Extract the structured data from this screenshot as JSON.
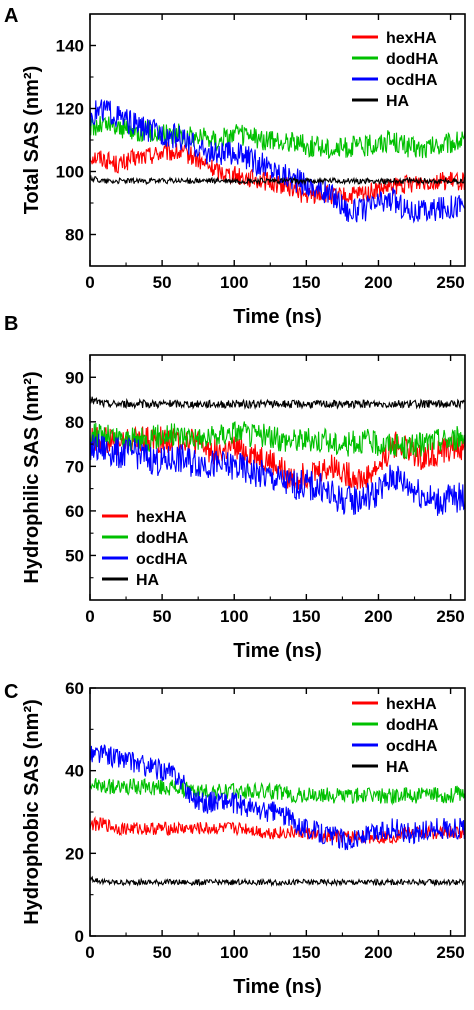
{
  "chart_data": [
    {
      "panel_label": "A",
      "type": "line",
      "xlabel": "Time (ns)",
      "ylabel": "Total SAS (nm²)",
      "xlim": [
        0,
        260
      ],
      "ylim": [
        70,
        150
      ],
      "xticks": [
        0,
        50,
        100,
        150,
        200,
        250
      ],
      "yticks": [
        80,
        100,
        120,
        140
      ],
      "legend_position": "top-right",
      "series": [
        {
          "name": "hexHA",
          "color": "#ff0000",
          "x": [
            0,
            10,
            20,
            30,
            40,
            50,
            60,
            70,
            80,
            90,
            100,
            110,
            120,
            130,
            140,
            150,
            160,
            170,
            180,
            190,
            200,
            210,
            220,
            230,
            240,
            250,
            260
          ],
          "values": [
            105,
            104,
            102,
            104,
            105,
            106,
            106,
            105,
            102,
            100,
            99,
            98,
            97,
            96,
            95,
            92,
            93,
            92,
            92,
            93,
            94,
            95,
            96,
            97,
            97,
            97,
            97
          ]
        },
        {
          "name": "dodHA",
          "color": "#00c000",
          "x": [
            0,
            10,
            20,
            30,
            40,
            50,
            60,
            70,
            80,
            90,
            100,
            110,
            120,
            130,
            140,
            150,
            160,
            170,
            180,
            190,
            200,
            210,
            220,
            230,
            240,
            250,
            260
          ],
          "values": [
            114,
            115,
            114,
            113,
            113,
            112,
            112,
            111,
            111,
            110,
            112,
            111,
            110,
            109,
            110,
            108,
            108,
            107,
            108,
            108,
            109,
            110,
            108,
            107,
            108,
            109,
            110
          ]
        },
        {
          "name": "ocdHA",
          "color": "#0000ff",
          "x": [
            0,
            10,
            20,
            30,
            40,
            50,
            60,
            70,
            80,
            90,
            100,
            110,
            120,
            130,
            140,
            150,
            160,
            170,
            180,
            190,
            200,
            210,
            220,
            230,
            240,
            250,
            260
          ],
          "values": [
            118,
            120,
            117,
            115,
            113,
            112,
            111,
            109,
            106,
            105,
            106,
            104,
            102,
            100,
            98,
            96,
            94,
            92,
            87,
            88,
            90,
            91,
            88,
            87,
            88,
            89,
            90
          ]
        },
        {
          "name": "HA",
          "color": "#000000",
          "x": [
            0,
            10,
            20,
            30,
            40,
            50,
            60,
            70,
            80,
            90,
            100,
            110,
            120,
            130,
            140,
            150,
            160,
            170,
            180,
            190,
            200,
            210,
            220,
            230,
            240,
            250,
            260
          ],
          "values": [
            98,
            97,
            97,
            97,
            97,
            97,
            97,
            97,
            97,
            97,
            97,
            97,
            97,
            97,
            97,
            97,
            97,
            97,
            97,
            97,
            97,
            97,
            97,
            97,
            97,
            97,
            97
          ]
        }
      ]
    },
    {
      "panel_label": "B",
      "type": "line",
      "xlabel": "Time (ns)",
      "ylabel": "Hydrophilic SAS (nm²)",
      "xlim": [
        0,
        260
      ],
      "ylim": [
        40,
        95
      ],
      "xticks": [
        0,
        50,
        100,
        150,
        200,
        250
      ],
      "yticks": [
        50,
        60,
        70,
        80,
        90
      ],
      "legend_position": "bottom-left",
      "series": [
        {
          "name": "hexHA",
          "color": "#ff0000",
          "x": [
            0,
            10,
            20,
            30,
            40,
            50,
            60,
            70,
            80,
            90,
            100,
            110,
            120,
            130,
            140,
            150,
            160,
            170,
            180,
            190,
            200,
            210,
            220,
            230,
            240,
            250,
            260
          ],
          "values": [
            76,
            76,
            75,
            76,
            76,
            76,
            76,
            76,
            74,
            73,
            74,
            73,
            72,
            70,
            67,
            68,
            69,
            70,
            68,
            67,
            70,
            75,
            74,
            72,
            73,
            74,
            74
          ]
        },
        {
          "name": "dodHA",
          "color": "#00c000",
          "x": [
            0,
            10,
            20,
            30,
            40,
            50,
            60,
            70,
            80,
            90,
            100,
            110,
            120,
            130,
            140,
            150,
            160,
            170,
            180,
            190,
            200,
            210,
            220,
            230,
            240,
            250,
            260
          ],
          "values": [
            77,
            77,
            76,
            76,
            76,
            77,
            77,
            77,
            76,
            77,
            78,
            77,
            77,
            76,
            76,
            76,
            76,
            75,
            75,
            76,
            75,
            75,
            74,
            75,
            76,
            76,
            77
          ]
        },
        {
          "name": "ocdHA",
          "color": "#0000ff",
          "x": [
            0,
            10,
            20,
            30,
            40,
            50,
            60,
            70,
            80,
            90,
            100,
            110,
            120,
            130,
            140,
            150,
            160,
            170,
            180,
            190,
            200,
            210,
            220,
            230,
            240,
            250,
            260
          ],
          "values": [
            74,
            74,
            73,
            73,
            72,
            71,
            72,
            71,
            71,
            70,
            70,
            69,
            68,
            67,
            66,
            66,
            65,
            63,
            62,
            63,
            64,
            68,
            66,
            64,
            62,
            63,
            63
          ]
        },
        {
          "name": "HA",
          "color": "#000000",
          "x": [
            0,
            10,
            20,
            30,
            40,
            50,
            60,
            70,
            80,
            90,
            100,
            110,
            120,
            130,
            140,
            150,
            160,
            170,
            180,
            190,
            200,
            210,
            220,
            230,
            240,
            250,
            260
          ],
          "values": [
            85,
            84,
            84,
            84,
            84,
            84,
            84,
            84,
            84,
            84,
            84,
            84,
            84,
            84,
            84,
            84,
            84,
            84,
            84,
            84,
            84,
            84,
            84,
            84,
            84,
            84,
            84
          ]
        }
      ]
    },
    {
      "panel_label": "C",
      "type": "line",
      "xlabel": "Time (ns)",
      "ylabel": "Hydrophobic SAS (nm²)",
      "xlim": [
        0,
        260
      ],
      "ylim": [
        0,
        60
      ],
      "xticks": [
        0,
        50,
        100,
        150,
        200,
        250
      ],
      "yticks": [
        0,
        20,
        40,
        60
      ],
      "legend_position": "top-right",
      "series": [
        {
          "name": "hexHA",
          "color": "#ff0000",
          "x": [
            0,
            10,
            20,
            30,
            40,
            50,
            60,
            70,
            80,
            90,
            100,
            110,
            120,
            130,
            140,
            150,
            160,
            170,
            180,
            190,
            200,
            210,
            220,
            230,
            240,
            250,
            260
          ],
          "values": [
            27,
            27,
            26,
            26,
            26,
            26,
            26,
            26,
            26,
            26,
            26,
            26,
            25,
            25,
            25,
            25,
            24,
            24,
            24,
            24,
            24,
            24,
            25,
            25,
            25,
            25,
            25
          ]
        },
        {
          "name": "dodHA",
          "color": "#00c000",
          "x": [
            0,
            10,
            20,
            30,
            40,
            50,
            60,
            70,
            80,
            90,
            100,
            110,
            120,
            130,
            140,
            150,
            160,
            170,
            180,
            190,
            200,
            210,
            220,
            230,
            240,
            250,
            260
          ],
          "values": [
            37,
            36,
            36,
            36,
            36,
            36,
            36,
            35,
            35,
            35,
            35,
            35,
            35,
            35,
            34,
            34,
            34,
            34,
            34,
            34,
            34,
            34,
            34,
            34,
            34,
            34,
            35
          ]
        },
        {
          "name": "ocdHA",
          "color": "#0000ff",
          "x": [
            0,
            10,
            20,
            30,
            40,
            50,
            60,
            70,
            80,
            90,
            100,
            110,
            120,
            130,
            140,
            150,
            160,
            170,
            180,
            190,
            200,
            210,
            220,
            230,
            240,
            250,
            260
          ],
          "values": [
            44,
            44,
            43,
            42,
            41,
            40,
            39,
            34,
            32,
            33,
            32,
            31,
            30,
            30,
            28,
            26,
            25,
            24,
            23,
            24,
            25,
            26,
            25,
            25,
            26,
            26,
            26
          ]
        },
        {
          "name": "HA",
          "color": "#000000",
          "x": [
            0,
            10,
            20,
            30,
            40,
            50,
            60,
            70,
            80,
            90,
            100,
            110,
            120,
            130,
            140,
            150,
            160,
            170,
            180,
            190,
            200,
            210,
            220,
            230,
            240,
            250,
            260
          ],
          "values": [
            14,
            13,
            13,
            13,
            13,
            13,
            13,
            13,
            13,
            13,
            13,
            13,
            13,
            13,
            13,
            13,
            13,
            13,
            13,
            13,
            13,
            13,
            13,
            13,
            13,
            13,
            13
          ]
        }
      ]
    }
  ]
}
